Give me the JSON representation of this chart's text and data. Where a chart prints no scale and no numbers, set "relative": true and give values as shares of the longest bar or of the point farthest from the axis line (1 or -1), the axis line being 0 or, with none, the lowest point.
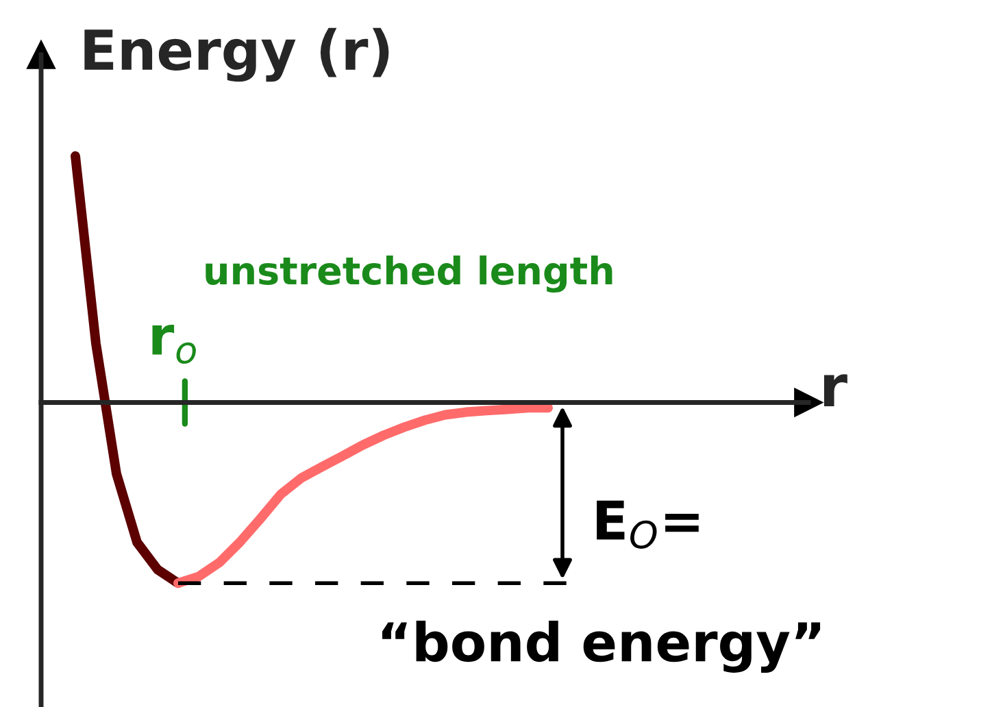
{
  "chart_data": {
    "type": "line",
    "relative": true,
    "ylabel": "Energy (r)",
    "xlabel": "r",
    "grid": false,
    "marker": "none",
    "categories": [
      null,
      null,
      null,
      null,
      null,
      null,
      null,
      null,
      null,
      null,
      null,
      null,
      null,
      null,
      null,
      null,
      null,
      null,
      null,
      null,
      null,
      null,
      null,
      null,
      null,
      null
    ],
    "series": [
      {
        "color": "#5c0000",
        "values": [
          1.0,
          0.239,
          -0.289,
          -0.567,
          -0.678,
          -0.733,
          null,
          null,
          null,
          null,
          null,
          null,
          null,
          null,
          null,
          null,
          null,
          null,
          null,
          null,
          null,
          null,
          null,
          null,
          null,
          null
        ]
      },
      {
        "color": "#ff6b6b",
        "values": [
          null,
          null,
          null,
          null,
          null,
          -0.733,
          -0.706,
          -0.65,
          -0.567,
          -0.472,
          -0.372,
          -0.306,
          -0.261,
          -0.217,
          -0.172,
          -0.133,
          -0.1,
          -0.072,
          -0.05,
          -0.039,
          -0.033,
          -0.028,
          -0.022,
          -0.022,
          null,
          null
        ]
      },
      {
        "color": "#000000",
        "line_style": "dashed",
        "values": [
          null,
          null,
          null,
          null,
          null,
          -0.733,
          -0.733,
          -0.733,
          -0.733,
          -0.733,
          -0.733,
          -0.733,
          -0.733,
          -0.733,
          -0.733,
          -0.733,
          -0.733,
          -0.733,
          -0.733,
          -0.733,
          -0.733,
          -0.733,
          -0.733,
          -0.733,
          -0.733,
          null
        ]
      }
    ],
    "annotations": [
      "unstretched length",
      "r$_{o}$",
      "E$_{O}$=",
      "“bond energy”"
    ]
  }
}
